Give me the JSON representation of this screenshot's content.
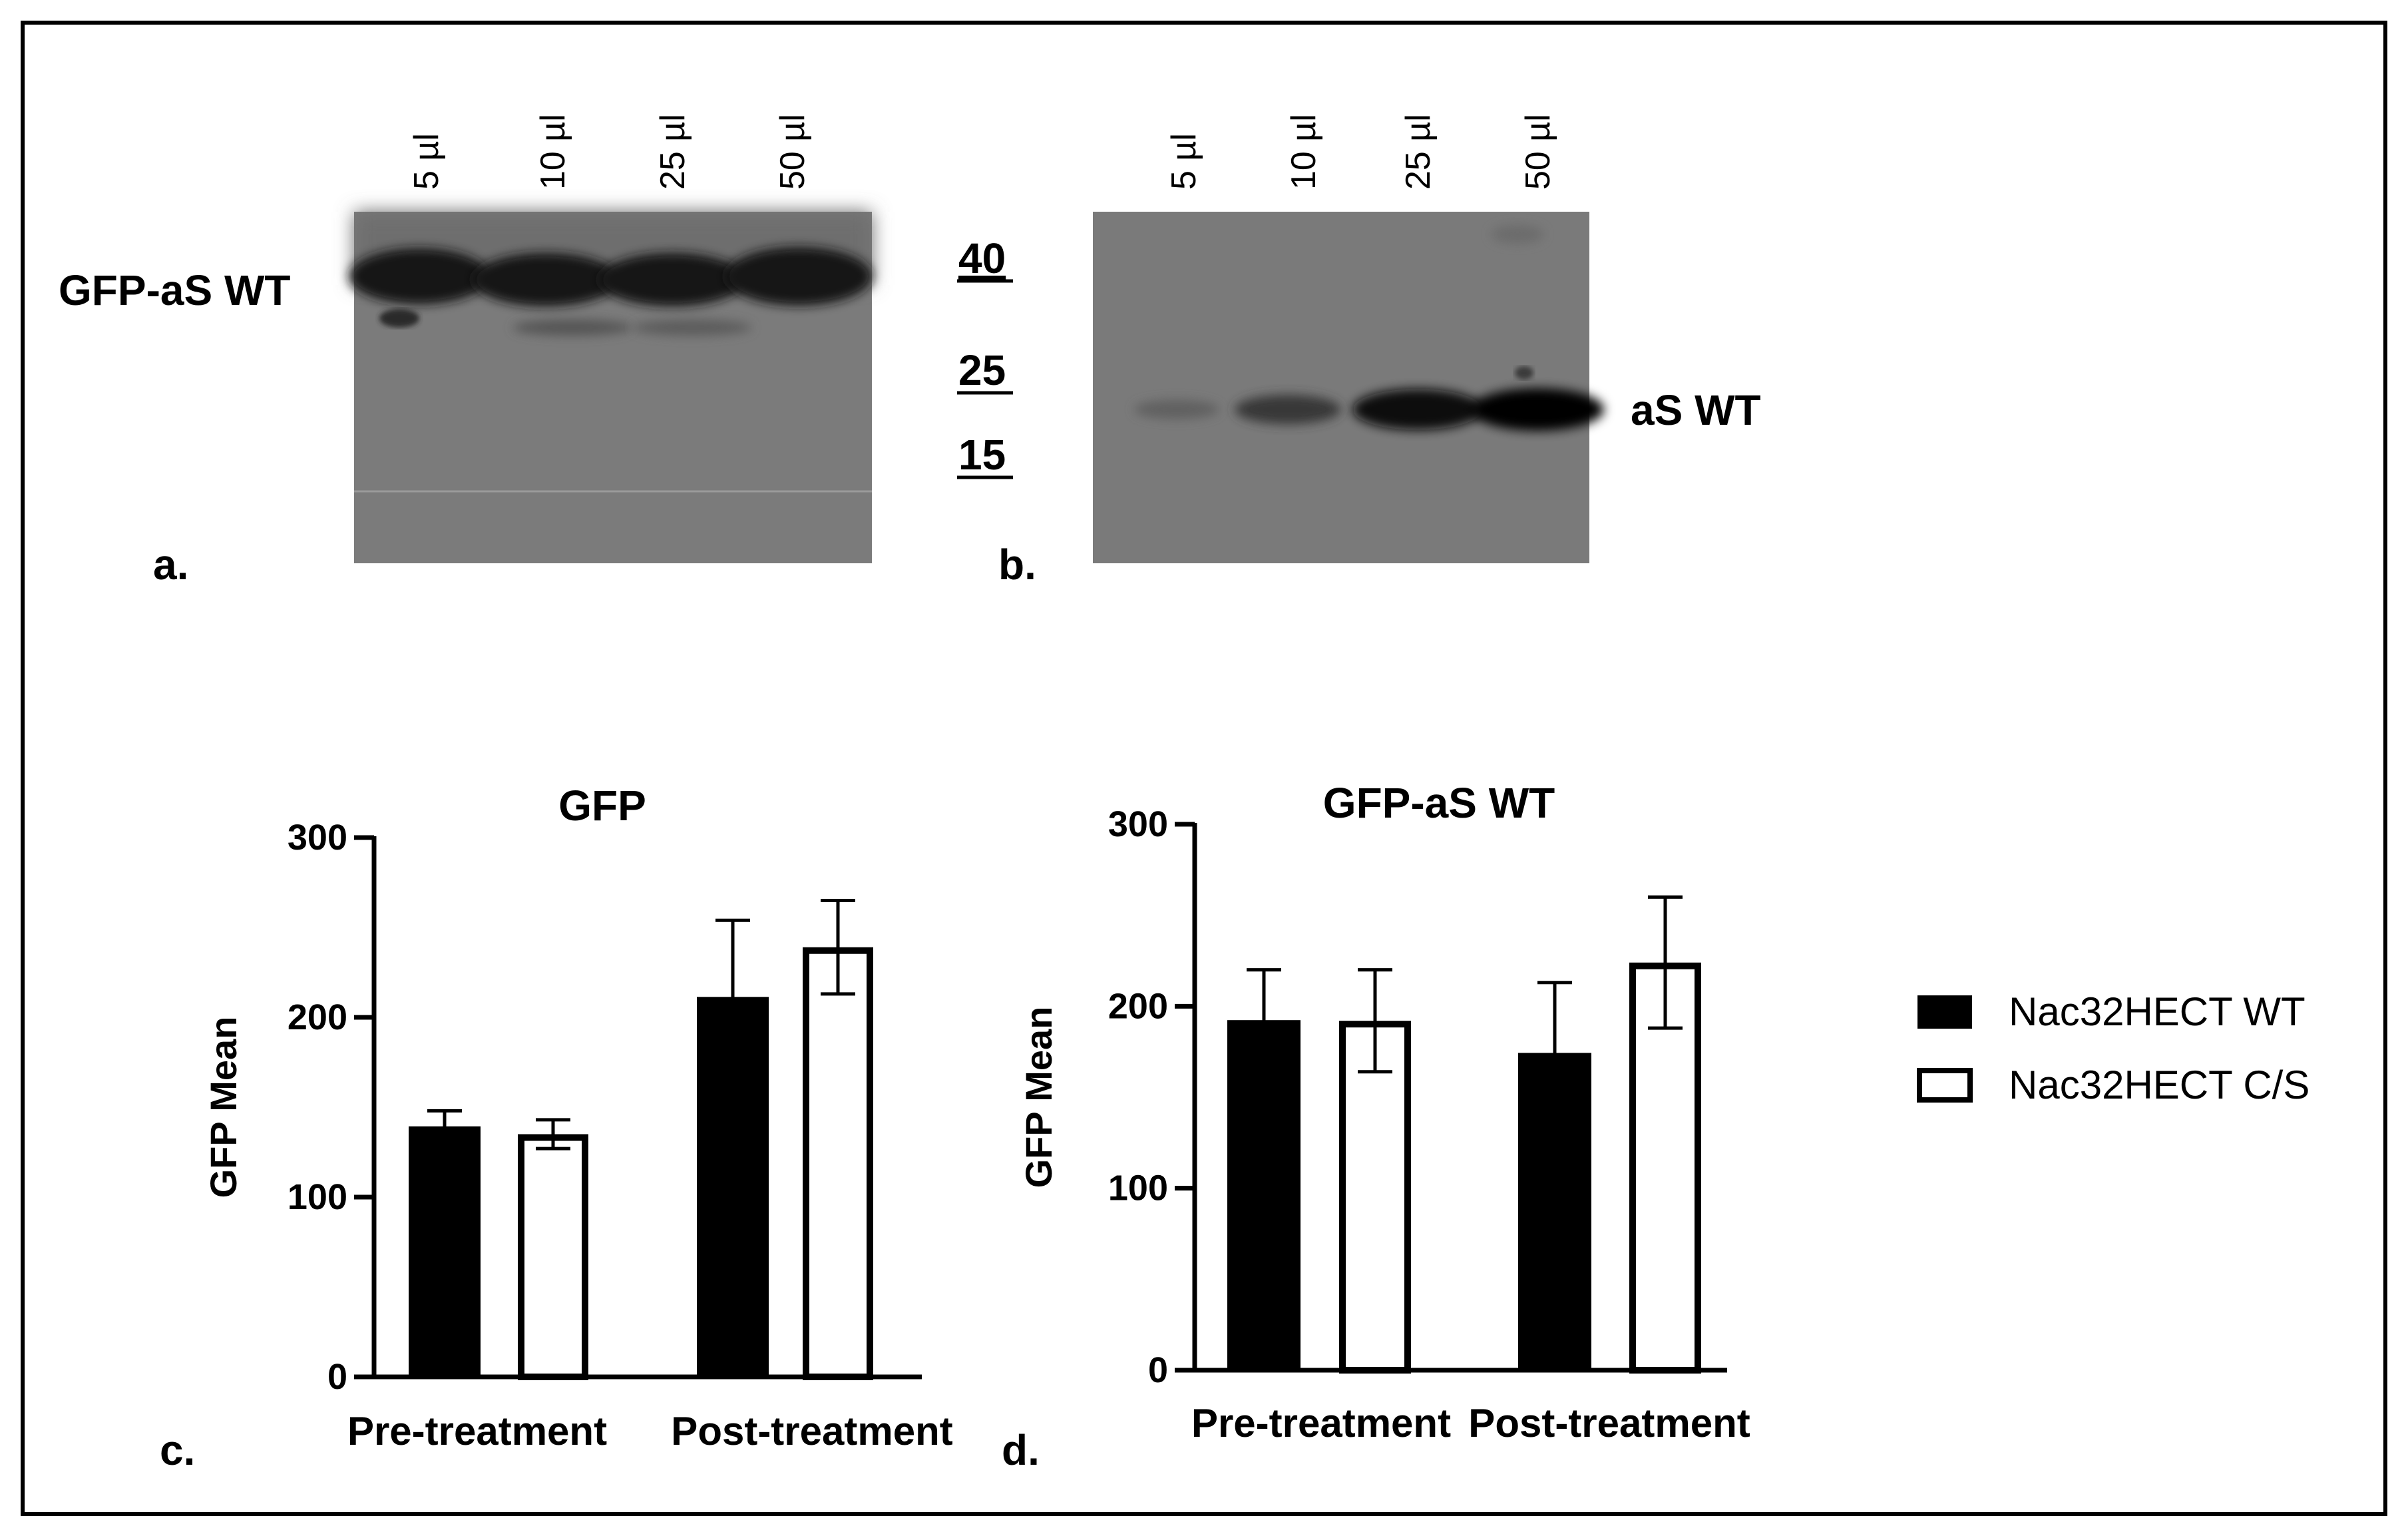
{
  "figure": {
    "panel_labels": {
      "a": "a.",
      "b": "b.",
      "c": "c.",
      "d": "d."
    }
  },
  "blot_a": {
    "band_label": "GFP-aS WT",
    "lanes": [
      "5 µl",
      "10 µl",
      "25 µl",
      "50 µl"
    ]
  },
  "blot_b": {
    "band_label": "aS WT",
    "lanes": [
      "5 µl",
      "10 µl",
      "25 µl",
      "50 µl"
    ],
    "markers": [
      "40",
      "25",
      "15"
    ],
    "band_intensity": [
      0.2,
      0.55,
      0.95,
      1.0
    ]
  },
  "legend": {
    "items": [
      {
        "label": "Nac32HECT WT",
        "fill": "#000000"
      },
      {
        "label": "Nac32HECT C/S",
        "fill": "#ffffff"
      }
    ],
    "placement": "right"
  },
  "chart_data": [
    {
      "type": "bar",
      "title": "GFP",
      "xlabel": "",
      "ylabel": "GFP Mean",
      "ylim": [
        0,
        300
      ],
      "yticks": [
        "0",
        "100",
        "200",
        "300"
      ],
      "categories": [
        "Pre-treatment",
        "Post-treatment"
      ],
      "series": [
        {
          "name": "Nac32HECT WT",
          "values": [
            139,
            211
          ],
          "errors": [
            9,
            43
          ],
          "fill": "#000000"
        },
        {
          "name": "Nac32HECT C/S",
          "values": [
            135,
            239
          ],
          "errors": [
            8,
            26
          ],
          "fill": "#ffffff"
        }
      ],
      "grid": false
    },
    {
      "type": "bar",
      "title": "GFP-aS WT",
      "xlabel": "",
      "ylabel": "GFP Mean",
      "ylim": [
        0,
        300
      ],
      "yticks": [
        "0",
        "100",
        "200",
        "300"
      ],
      "categories": [
        "Pre-treatment",
        "Post-treatment"
      ],
      "series": [
        {
          "name": "Nac32HECT WT",
          "values": [
            192,
            174
          ],
          "errors": [
            28,
            39
          ],
          "fill": "#000000"
        },
        {
          "name": "Nac32HECT C/S",
          "values": [
            192,
            224
          ],
          "errors": [
            28,
            36
          ],
          "fill": "#ffffff"
        }
      ],
      "grid": false
    }
  ]
}
